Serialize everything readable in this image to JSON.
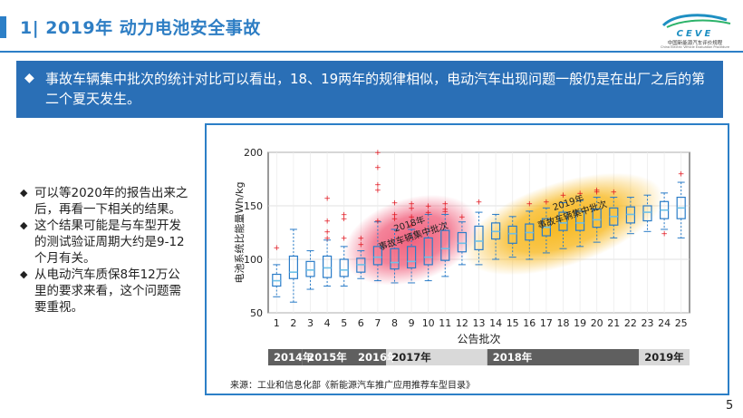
{
  "slide": {
    "title": "1| 2019年 动力电池安全事故",
    "page_number": "5",
    "accent_color": "#2c7fc7"
  },
  "logo": {
    "text": "CEVE",
    "subtitle": "中国新能源汽车评价规程",
    "subtitle_en": "China Electric Vehicle Evaluation Procedure"
  },
  "callout": {
    "bullet": "◆",
    "text": "事故车辆集中批次的统计对比可以看出，18、19两年的规律相似，电动汽车出现问题一般仍是在出厂之后的第二个夏天发生。",
    "color": "#2a6fb6"
  },
  "left_points": [
    {
      "bullet": "◆",
      "text": "可以等2020年的报告出来之后，再看一下相关的结果。"
    },
    {
      "bullet": "◆",
      "text": "这个结果可能是与车型开发的测试验证周期大约是9-12个月有关。"
    },
    {
      "bullet": "◆",
      "text": "从电动汽车质保8年12万公里的要求来看，这个问题需要重视。"
    }
  ],
  "chart_data": {
    "type": "box",
    "ylabel": "电池系统比能量Wh/kg",
    "xlabel": "公告批次",
    "ylim": [
      50,
      200
    ],
    "yticks": [
      50,
      100,
      150,
      200
    ],
    "grid": true,
    "categories": [
      "1",
      "2",
      "3",
      "4",
      "5",
      "6",
      "7",
      "8",
      "9",
      "10",
      "11",
      "12",
      "13",
      "14",
      "15",
      "16",
      "17",
      "18",
      "19",
      "20",
      "21",
      "22",
      "23",
      "24",
      "25"
    ],
    "boxes": [
      {
        "q1": 75,
        "median": 80,
        "q3": 86,
        "wlo": 65,
        "whi": 95,
        "outliers": [
          111
        ]
      },
      {
        "q1": 82,
        "median": 88,
        "q3": 103,
        "wlo": 60,
        "whi": 128,
        "outliers": []
      },
      {
        "q1": 84,
        "median": 90,
        "q3": 98,
        "wlo": 72,
        "whi": 108,
        "outliers": []
      },
      {
        "q1": 83,
        "median": 92,
        "q3": 103,
        "wlo": 75,
        "whi": 118,
        "outliers": [
          120,
          126,
          136,
          157
        ]
      },
      {
        "q1": 84,
        "median": 90,
        "q3": 100,
        "wlo": 75,
        "whi": 112,
        "outliers": [
          120,
          138,
          142
        ]
      },
      {
        "q1": 88,
        "median": 95,
        "q3": 101,
        "wlo": 82,
        "whi": 108,
        "outliers": [
          114,
          120
        ]
      },
      {
        "q1": 95,
        "median": 102,
        "q3": 112,
        "wlo": 80,
        "whi": 135,
        "outliers": [
          136,
          165,
          170,
          186,
          200
        ]
      },
      {
        "q1": 91,
        "median": 97,
        "q3": 110,
        "wlo": 78,
        "whi": 128,
        "outliers": [
          138,
          142,
          153
        ]
      },
      {
        "q1": 92,
        "median": 98,
        "q3": 112,
        "wlo": 78,
        "whi": 128,
        "outliers": [
          132,
          140,
          148,
          152
        ]
      },
      {
        "q1": 95,
        "median": 102,
        "q3": 120,
        "wlo": 80,
        "whi": 142,
        "outliers": [
          144,
          150
        ]
      },
      {
        "q1": 99,
        "median": 110,
        "q3": 127,
        "wlo": 84,
        "whi": 142,
        "outliers": [
          145,
          147,
          152
        ]
      },
      {
        "q1": 107,
        "median": 115,
        "q3": 125,
        "wlo": 95,
        "whi": 135,
        "outliers": [
          140
        ]
      },
      {
        "q1": 109,
        "median": 117,
        "q3": 131,
        "wlo": 95,
        "whi": 144,
        "outliers": [
          154
        ]
      },
      {
        "q1": 119,
        "median": 126,
        "q3": 134,
        "wlo": 100,
        "whi": 142,
        "outliers": []
      },
      {
        "q1": 115,
        "median": 124,
        "q3": 131,
        "wlo": 102,
        "whi": 140,
        "outliers": []
      },
      {
        "q1": 118,
        "median": 125,
        "q3": 133,
        "wlo": 100,
        "whi": 145,
        "outliers": [
          152
        ]
      },
      {
        "q1": 122,
        "median": 130,
        "q3": 138,
        "wlo": 106,
        "whi": 148,
        "outliers": [
          154
        ]
      },
      {
        "q1": 127,
        "median": 134,
        "q3": 144,
        "wlo": 110,
        "whi": 153,
        "outliers": [
          160
        ]
      },
      {
        "q1": 127,
        "median": 134,
        "q3": 145,
        "wlo": 112,
        "whi": 155,
        "outliers": [
          162
        ]
      },
      {
        "q1": 130,
        "median": 137,
        "q3": 147,
        "wlo": 116,
        "whi": 158,
        "outliers": [
          163,
          165
        ]
      },
      {
        "q1": 132,
        "median": 140,
        "q3": 148,
        "wlo": 120,
        "whi": 158,
        "outliers": [
          163
        ]
      },
      {
        "q1": 134,
        "median": 142,
        "q3": 149,
        "wlo": 124,
        "whi": 158,
        "outliers": []
      },
      {
        "q1": 136,
        "median": 144,
        "q3": 150,
        "wlo": 126,
        "whi": 160,
        "outliers": []
      },
      {
        "q1": 138,
        "median": 146,
        "q3": 154,
        "wlo": 128,
        "whi": 162,
        "outliers": [
          124
        ]
      },
      {
        "q1": 138,
        "median": 148,
        "q3": 158,
        "wlo": 120,
        "whi": 172,
        "outliers": [
          180
        ]
      }
    ],
    "box_color": "#2a7cc8",
    "median_color": "#6cc1e8",
    "outlier_color": "#e1141e",
    "highlights": [
      {
        "label_line1": "2018年",
        "label_line2": "事故车辆集中批次",
        "from_batch": 6,
        "to_batch": 12,
        "color": "#f05a78"
      },
      {
        "label_line1": "2019年",
        "label_line2": "事故车辆集中批次",
        "from_batch": 13,
        "to_batch": 23,
        "color": "#f7b412"
      }
    ],
    "year_bands": [
      {
        "label": "2014年",
        "from_batch": 1,
        "to_batch": 2,
        "dark": true
      },
      {
        "label": "2015年",
        "from_batch": 3,
        "to_batch": 5,
        "dark": true
      },
      {
        "label": "2016年",
        "from_batch": 6,
        "to_batch": 7,
        "dark": true
      },
      {
        "label": "2017年",
        "from_batch": 8,
        "to_batch": 13,
        "dark": false
      },
      {
        "label": "2018年",
        "from_batch": 14,
        "to_batch": 22,
        "dark": true
      },
      {
        "label": "2019年",
        "from_batch": 23,
        "to_batch": 25,
        "dark": false
      }
    ],
    "source": "来源：工业和信息化部《新能源汽车推广应用推荐车型目录》"
  }
}
